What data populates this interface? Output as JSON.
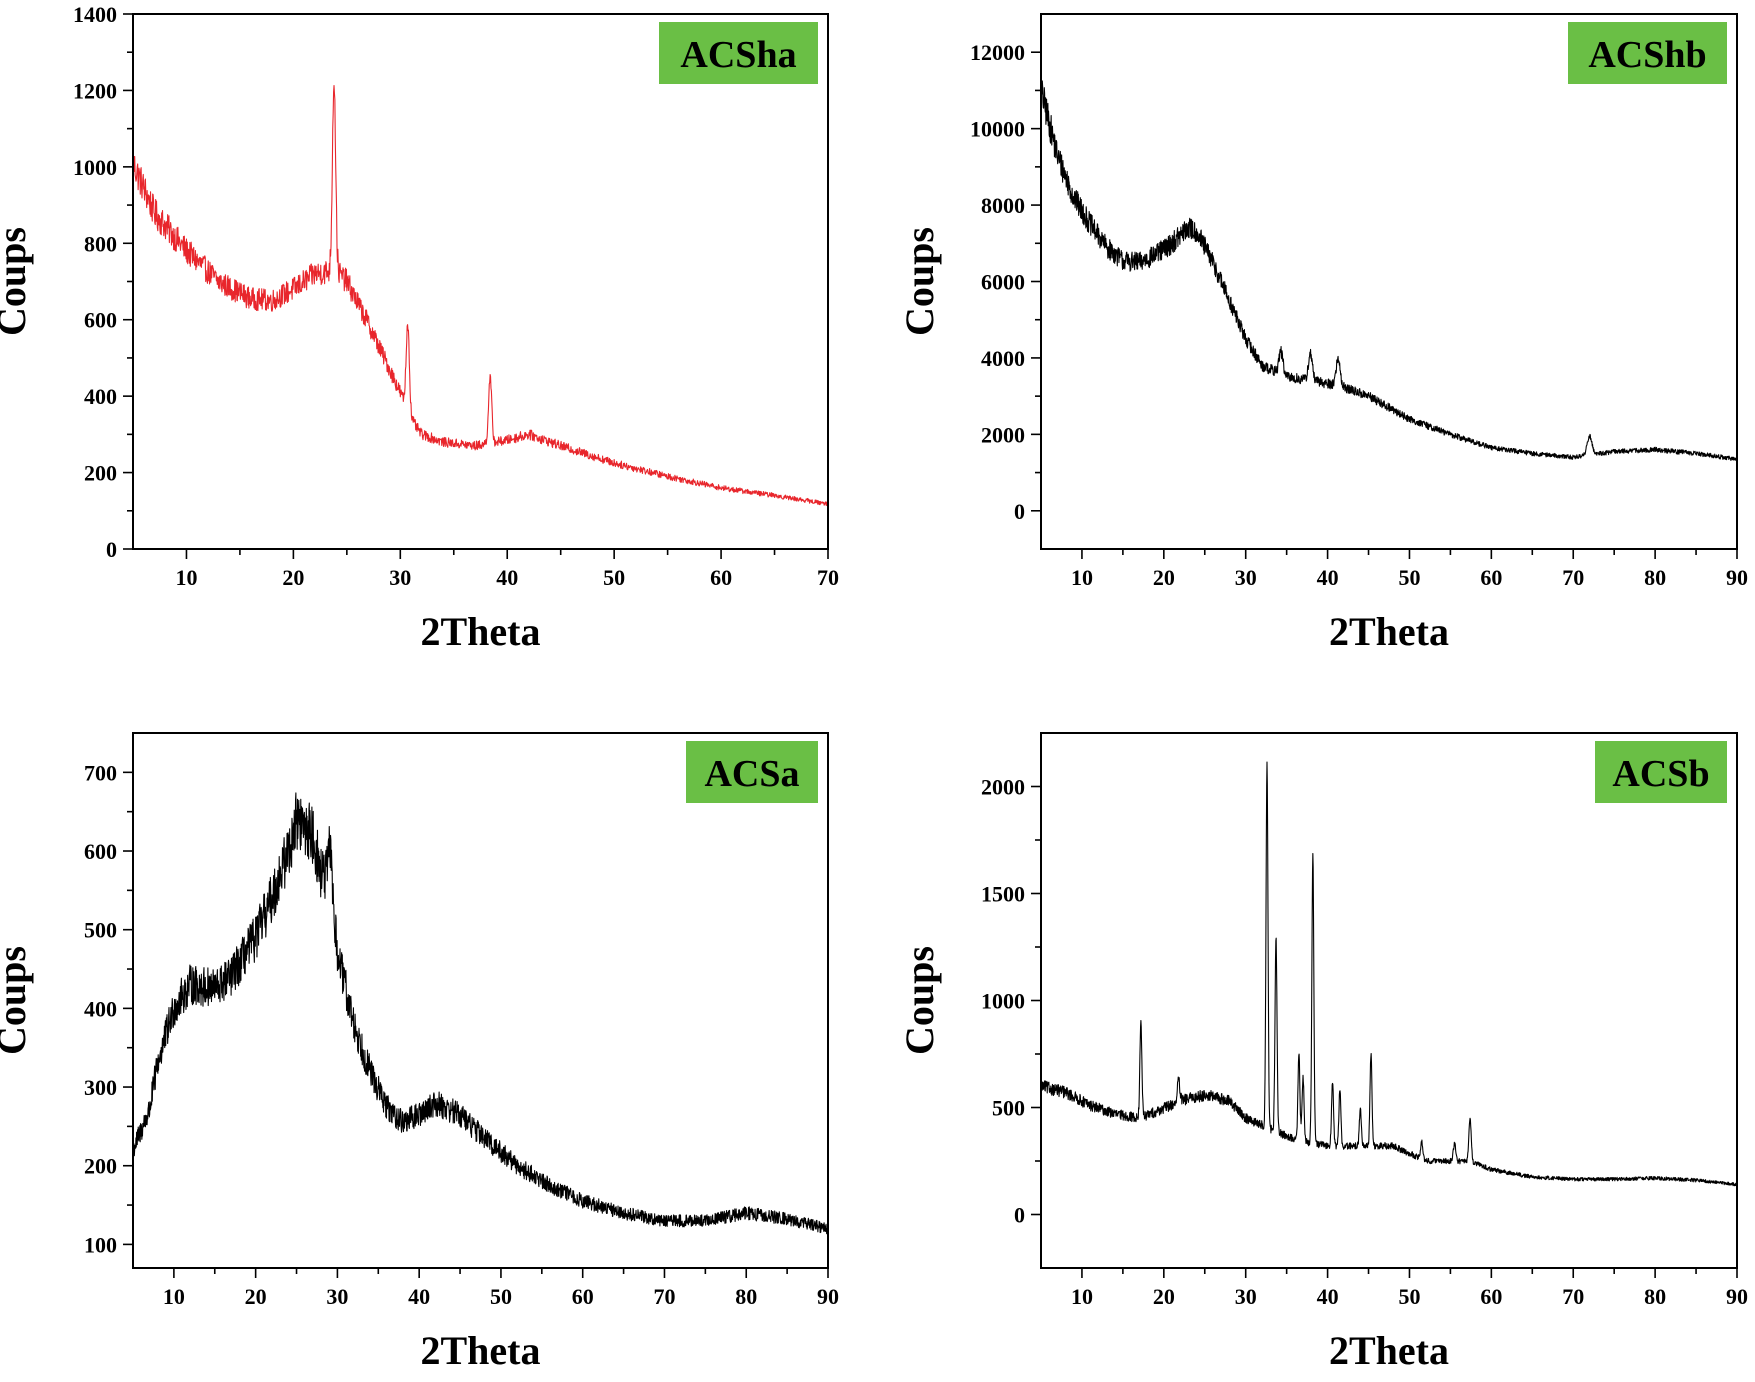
{
  "figure": {
    "panels": [
      "ACSha",
      "ACShb",
      "ACSa",
      "ACSb"
    ]
  },
  "chart_data": [
    {
      "id": "ACSha",
      "type": "line",
      "label": "ACSha",
      "badge_color": "#6abf45",
      "line_color": "#e8262c",
      "xlabel": "2Theta",
      "ylabel": "Coups",
      "xlim": [
        5,
        70
      ],
      "ylim": [
        0,
        1400
      ],
      "xticks": [
        10,
        20,
        30,
        40,
        50,
        60,
        70
      ],
      "yticks": [
        0,
        200,
        400,
        600,
        800,
        1000,
        1200,
        1400
      ],
      "noise": 0.045,
      "baseline": [
        [
          5,
          1010
        ],
        [
          7,
          880
        ],
        [
          10,
          780
        ],
        [
          13,
          700
        ],
        [
          16,
          655
        ],
        [
          18,
          650
        ],
        [
          20,
          680
        ],
        [
          22,
          720
        ],
        [
          24,
          730
        ],
        [
          25,
          700
        ],
        [
          27,
          590
        ],
        [
          29,
          470
        ],
        [
          30,
          410
        ],
        [
          31,
          340
        ],
        [
          32,
          300
        ],
        [
          34,
          280
        ],
        [
          37,
          270
        ],
        [
          40,
          285
        ],
        [
          42,
          300
        ],
        [
          45,
          270
        ],
        [
          50,
          225
        ],
        [
          55,
          190
        ],
        [
          60,
          160
        ],
        [
          65,
          140
        ],
        [
          70,
          118
        ]
      ],
      "peaks": [
        [
          23.8,
          500,
          0.15
        ],
        [
          30.7,
          230,
          0.15
        ],
        [
          38.4,
          170,
          0.15
        ]
      ]
    },
    {
      "id": "ACShb",
      "type": "line",
      "label": "ACShb",
      "badge_color": "#6abf45",
      "line_color": "#000000",
      "xlabel": "2Theta",
      "ylabel": "Coups",
      "xlim": [
        5,
        90
      ],
      "ylim": [
        -1000,
        13000
      ],
      "xticks": [
        10,
        20,
        30,
        40,
        50,
        60,
        70,
        80,
        90
      ],
      "yticks": [
        0,
        2000,
        4000,
        6000,
        8000,
        10000,
        12000
      ],
      "noise": 0.04,
      "baseline": [
        [
          5,
          11000
        ],
        [
          7,
          9300
        ],
        [
          9,
          8200
        ],
        [
          11,
          7500
        ],
        [
          13,
          6900
        ],
        [
          15,
          6550
        ],
        [
          17,
          6500
        ],
        [
          19,
          6700
        ],
        [
          21,
          7000
        ],
        [
          23,
          7400
        ],
        [
          24,
          7300
        ],
        [
          26,
          6500
        ],
        [
          28,
          5500
        ],
        [
          30,
          4500
        ],
        [
          32,
          3800
        ],
        [
          35,
          3500
        ],
        [
          38,
          3400
        ],
        [
          41,
          3300
        ],
        [
          45,
          3000
        ],
        [
          50,
          2400
        ],
        [
          55,
          2000
        ],
        [
          60,
          1650
        ],
        [
          65,
          1500
        ],
        [
          70,
          1400
        ],
        [
          75,
          1550
        ],
        [
          80,
          1600
        ],
        [
          85,
          1500
        ],
        [
          90,
          1350
        ]
      ],
      "peaks": [
        [
          34.3,
          600,
          0.25
        ],
        [
          37.9,
          700,
          0.25
        ],
        [
          41.3,
          700,
          0.25
        ],
        [
          72,
          500,
          0.3
        ]
      ]
    },
    {
      "id": "ACSa",
      "type": "line",
      "label": "ACSa",
      "badge_color": "#6abf45",
      "line_color": "#000000",
      "xlabel": "2Theta",
      "ylabel": "Coups",
      "xlim": [
        5,
        90
      ],
      "ylim": [
        70,
        750
      ],
      "xticks": [
        10,
        20,
        30,
        40,
        50,
        60,
        70,
        80,
        90
      ],
      "yticks": [
        100,
        200,
        300,
        400,
        500,
        600,
        700
      ],
      "noise": 0.06,
      "baseline": [
        [
          5,
          220
        ],
        [
          7,
          270
        ],
        [
          8,
          330
        ],
        [
          10,
          400
        ],
        [
          12,
          430
        ],
        [
          15,
          425
        ],
        [
          17,
          440
        ],
        [
          20,
          490
        ],
        [
          22,
          540
        ],
        [
          24,
          600
        ],
        [
          25,
          640
        ],
        [
          27,
          620
        ],
        [
          28,
          570
        ],
        [
          29,
          570
        ],
        [
          30,
          470
        ],
        [
          32,
          380
        ],
        [
          34,
          320
        ],
        [
          36,
          275
        ],
        [
          38,
          255
        ],
        [
          40,
          265
        ],
        [
          42,
          280
        ],
        [
          45,
          265
        ],
        [
          48,
          235
        ],
        [
          52,
          200
        ],
        [
          56,
          175
        ],
        [
          60,
          155
        ],
        [
          65,
          140
        ],
        [
          70,
          130
        ],
        [
          75,
          130
        ],
        [
          80,
          140
        ],
        [
          85,
          132
        ],
        [
          90,
          120
        ]
      ],
      "peaks": [
        [
          29.2,
          50,
          0.2
        ]
      ]
    },
    {
      "id": "ACSb",
      "type": "line",
      "label": "ACSb",
      "badge_color": "#6abf45",
      "line_color": "#000000",
      "xlabel": "2Theta",
      "ylabel": "Coups",
      "xlim": [
        5,
        90
      ],
      "ylim": [
        -250,
        2250
      ],
      "xticks": [
        10,
        20,
        30,
        40,
        50,
        60,
        70,
        80,
        90
      ],
      "yticks": [
        0,
        500,
        1000,
        1500,
        2000
      ],
      "noise": 0.05,
      "baseline": [
        [
          5,
          600
        ],
        [
          8,
          570
        ],
        [
          11,
          510
        ],
        [
          14,
          470
        ],
        [
          17,
          450
        ],
        [
          19,
          480
        ],
        [
          22,
          530
        ],
        [
          25,
          560
        ],
        [
          28,
          530
        ],
        [
          30,
          450
        ],
        [
          33,
          400
        ],
        [
          36,
          350
        ],
        [
          40,
          320
        ],
        [
          44,
          320
        ],
        [
          48,
          320
        ],
        [
          52,
          250
        ],
        [
          56,
          250
        ],
        [
          58,
          240
        ],
        [
          60,
          210
        ],
        [
          65,
          175
        ],
        [
          70,
          165
        ],
        [
          75,
          165
        ],
        [
          80,
          170
        ],
        [
          85,
          160
        ],
        [
          90,
          140
        ]
      ],
      "peaks": [
        [
          17.2,
          450,
          0.12
        ],
        [
          21.8,
          100,
          0.15
        ],
        [
          32.6,
          1700,
          0.12
        ],
        [
          33.7,
          900,
          0.12
        ],
        [
          36.5,
          400,
          0.12
        ],
        [
          37.0,
          300,
          0.12
        ],
        [
          38.2,
          1350,
          0.12
        ],
        [
          40.6,
          300,
          0.12
        ],
        [
          41.5,
          260,
          0.12
        ],
        [
          44.0,
          180,
          0.12
        ],
        [
          45.3,
          430,
          0.12
        ],
        [
          51.5,
          80,
          0.15
        ],
        [
          55.5,
          80,
          0.15
        ],
        [
          57.4,
          200,
          0.15
        ]
      ]
    }
  ]
}
